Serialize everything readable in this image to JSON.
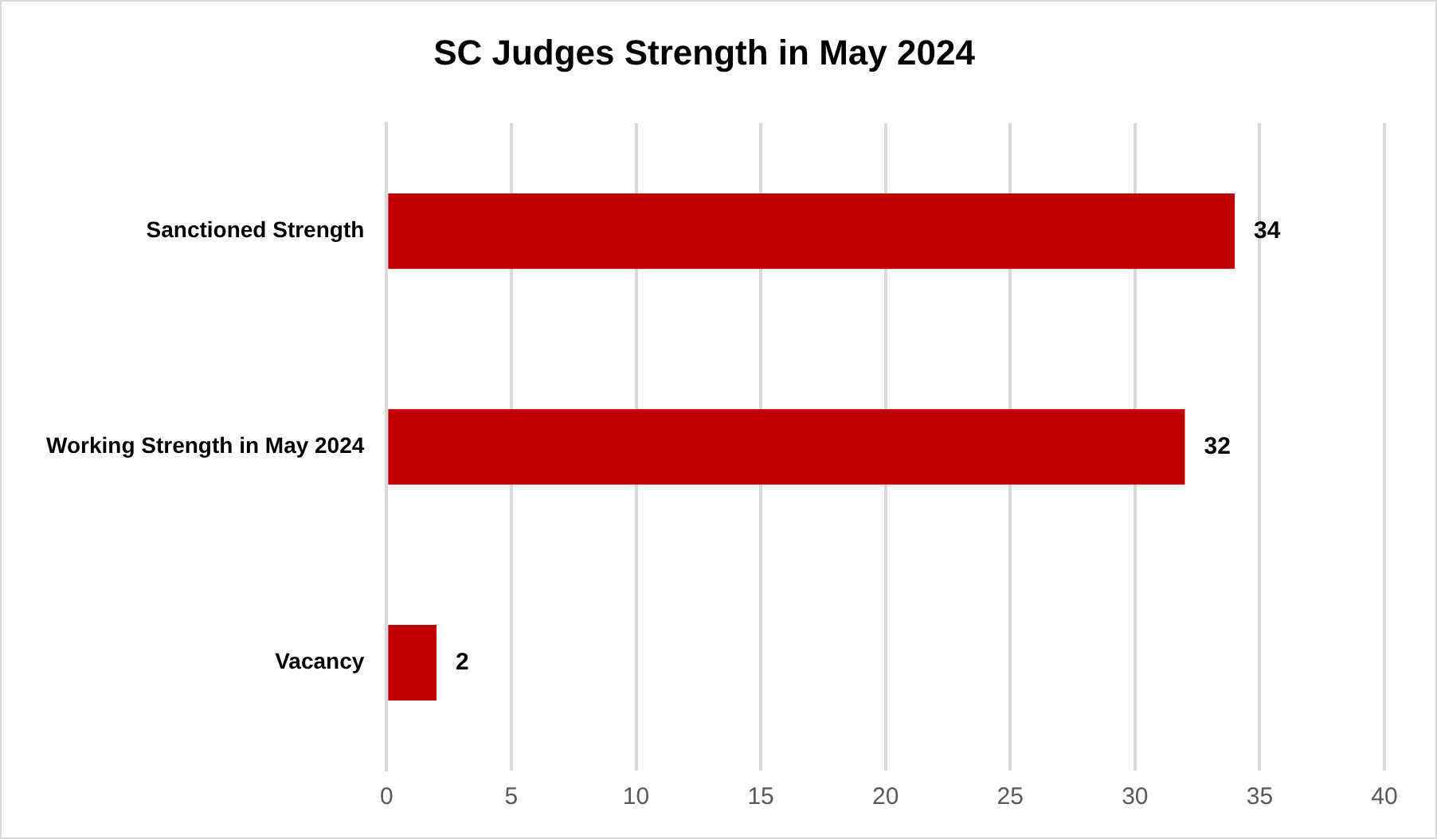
{
  "chart_data": {
    "type": "bar",
    "orientation": "horizontal",
    "title": "SC Judges Strength in May 2024",
    "categories": [
      "Sanctioned Strength",
      "Working Strength in May 2024",
      "Vacancy"
    ],
    "values": [
      34,
      32,
      2
    ],
    "color": "#c00000",
    "xlim": [
      0,
      40
    ],
    "xticks": [
      0,
      5,
      10,
      15,
      20,
      25,
      30,
      35,
      40
    ],
    "grid": "x",
    "legend": false,
    "data_labels": true
  }
}
